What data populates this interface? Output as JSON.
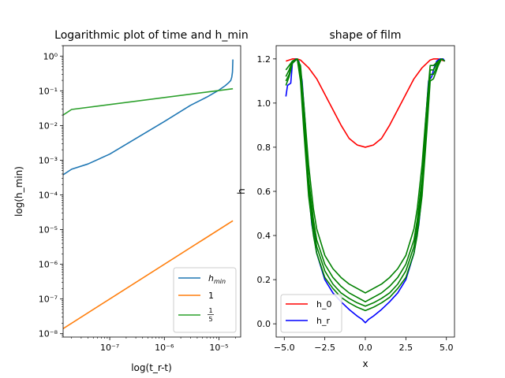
{
  "chart_data": [
    {
      "type": "line",
      "title": "Logarithmic plot of time and h_min",
      "xlabel": "log(t_r-t)",
      "ylabel": "log(h_min)",
      "xscale": "log",
      "yscale": "log",
      "xlim": [
        1.4e-08,
        2.5e-05
      ],
      "ylim": [
        8e-09,
        2.0
      ],
      "xticks": [
        1e-07,
        1e-06,
        1e-05
      ],
      "xtick_labels": [
        "10⁻⁷",
        "10⁻⁶",
        "10⁻⁵"
      ],
      "yticks": [
        1e-08,
        1e-07,
        1e-06,
        1e-05,
        0.0001,
        0.001,
        0.01,
        0.1,
        1
      ],
      "ytick_labels": [
        "10⁻⁸",
        "10⁻⁷",
        "10⁻⁶",
        "10⁻⁵",
        "10⁻⁴",
        "10⁻³",
        "10⁻²",
        "10⁻¹",
        "10⁰"
      ],
      "legend_position": "lower-right",
      "series": [
        {
          "name": "h_min",
          "color": "#1f77b4",
          "x": [
            1.4e-08,
            2e-08,
            4e-08,
            1e-07,
            3e-07,
            1e-06,
            3e-06,
            6e-06,
            1e-05,
            1.3e-05,
            1.5e-05,
            1.65e-05,
            1.72e-05,
            1.77e-05,
            1.8e-05
          ],
          "y": [
            0.00038,
            0.00055,
            0.00078,
            0.0015,
            0.0042,
            0.013,
            0.038,
            0.066,
            0.105,
            0.14,
            0.17,
            0.2,
            0.25,
            0.35,
            0.8
          ]
        },
        {
          "name": "1",
          "color": "#ff7f0e",
          "x": [
            1.4e-08,
            1.8e-05
          ],
          "y": [
            1.4e-08,
            1.8e-05
          ]
        },
        {
          "name": "1/5",
          "color": "#2ca02c",
          "x": [
            1.4e-08,
            2e-08,
            1.8e-05
          ],
          "y": [
            0.02,
            0.029,
            0.115
          ]
        }
      ]
    },
    {
      "type": "line",
      "title": "shape of film",
      "xlabel": "x",
      "ylabel": "h",
      "xlim": [
        -5.5,
        5.5
      ],
      "ylim": [
        -0.06,
        1.26
      ],
      "xticks": [
        -5.0,
        -2.5,
        0.0,
        2.5,
        5.0
      ],
      "xtick_labels": [
        "−5.0",
        "−2.5",
        "0.0",
        "2.5",
        "5.0"
      ],
      "yticks": [
        0.0,
        0.2,
        0.4,
        0.6,
        0.8,
        1.0,
        1.2
      ],
      "ytick_labels": [
        "0.0",
        "0.2",
        "0.4",
        "0.6",
        "0.8",
        "1.0",
        "1.2"
      ],
      "legend_position": "lower-left",
      "series": [
        {
          "name": "h_0",
          "color": "#ff0000",
          "x": [
            -4.9,
            -4.5,
            -4.2,
            -4.0,
            -3.5,
            -3.0,
            -2.5,
            -2.0,
            -1.5,
            -1.0,
            -0.5,
            0.0,
            0.5,
            1.0,
            1.5,
            2.0,
            2.5,
            3.0,
            3.5,
            4.0,
            4.2,
            4.5,
            4.9
          ],
          "y": [
            1.19,
            1.2,
            1.2,
            1.195,
            1.16,
            1.11,
            1.04,
            0.97,
            0.9,
            0.84,
            0.81,
            0.8,
            0.81,
            0.84,
            0.9,
            0.97,
            1.04,
            1.11,
            1.16,
            1.195,
            1.2,
            1.2,
            1.19
          ]
        },
        {
          "name": "h_r",
          "color": "#0000ff",
          "x": [
            -4.9,
            -4.8,
            -4.6,
            -4.5,
            -4.3,
            -4.1,
            -3.9,
            -3.7,
            -3.5,
            -3.3,
            -3.0,
            -2.5,
            -2.0,
            -1.5,
            -1.0,
            -0.5,
            -0.2,
            0.0,
            0.2,
            0.5,
            1.0,
            1.5,
            2.0,
            2.5,
            3.0,
            3.3,
            3.5,
            3.7,
            3.9,
            4.1,
            4.2,
            4.4,
            4.6,
            4.8,
            4.9
          ],
          "y": [
            1.03,
            1.08,
            1.09,
            1.18,
            1.2,
            1.19,
            1.1,
            0.9,
            0.6,
            0.45,
            0.32,
            0.2,
            0.14,
            0.1,
            0.065,
            0.035,
            0.02,
            0.005,
            0.02,
            0.035,
            0.065,
            0.1,
            0.14,
            0.2,
            0.32,
            0.45,
            0.6,
            0.9,
            1.1,
            1.12,
            1.15,
            1.19,
            1.2,
            1.2,
            1.19
          ]
        },
        {
          "color": "#008000",
          "x": [
            -4.9,
            -4.7,
            -4.5,
            -4.2,
            -4.0,
            -3.8,
            -3.5,
            -3.2,
            -3.0,
            -2.5,
            -2.0,
            -1.5,
            -1.0,
            -0.5,
            0.0,
            0.5,
            1.0,
            1.5,
            2.0,
            2.5,
            3.0,
            3.2,
            3.5,
            3.8,
            4.0,
            4.2,
            4.5,
            4.7,
            4.9
          ],
          "y": [
            1.15,
            1.17,
            1.19,
            1.2,
            1.17,
            1.0,
            0.72,
            0.52,
            0.43,
            0.31,
            0.25,
            0.21,
            0.18,
            0.16,
            0.14,
            0.16,
            0.18,
            0.21,
            0.25,
            0.31,
            0.43,
            0.52,
            0.72,
            1.0,
            1.17,
            1.17,
            1.19,
            1.2,
            1.19
          ]
        },
        {
          "color": "#008000",
          "x": [
            -4.9,
            -4.7,
            -4.5,
            -4.2,
            -4.0,
            -3.8,
            -3.5,
            -3.2,
            -3.0,
            -2.5,
            -2.0,
            -1.5,
            -1.0,
            -0.5,
            0.0,
            0.5,
            1.0,
            1.5,
            2.0,
            2.5,
            3.0,
            3.2,
            3.5,
            3.8,
            4.0,
            4.2,
            4.5,
            4.7,
            4.9
          ],
          "y": [
            1.12,
            1.15,
            1.19,
            1.2,
            1.15,
            0.95,
            0.66,
            0.47,
            0.38,
            0.27,
            0.21,
            0.17,
            0.14,
            0.12,
            0.1,
            0.12,
            0.14,
            0.17,
            0.21,
            0.27,
            0.38,
            0.47,
            0.66,
            0.95,
            1.15,
            1.15,
            1.19,
            1.2,
            1.19
          ]
        },
        {
          "color": "#008000",
          "x": [
            -4.9,
            -4.7,
            -4.5,
            -4.2,
            -4.0,
            -3.8,
            -3.5,
            -3.2,
            -3.0,
            -2.5,
            -2.0,
            -1.5,
            -1.0,
            -0.5,
            0.0,
            0.5,
            1.0,
            1.5,
            2.0,
            2.5,
            3.0,
            3.2,
            3.5,
            3.8,
            4.0,
            4.2,
            4.5,
            4.7,
            4.9
          ],
          "y": [
            1.1,
            1.13,
            1.19,
            1.2,
            1.13,
            0.92,
            0.62,
            0.44,
            0.35,
            0.24,
            0.18,
            0.14,
            0.115,
            0.095,
            0.08,
            0.095,
            0.115,
            0.14,
            0.18,
            0.24,
            0.35,
            0.44,
            0.62,
            0.92,
            1.13,
            1.13,
            1.18,
            1.2,
            1.19
          ]
        },
        {
          "color": "#008000",
          "x": [
            -4.9,
            -4.7,
            -4.5,
            -4.2,
            -4.0,
            -3.8,
            -3.5,
            -3.2,
            -3.0,
            -2.5,
            -2.0,
            -1.5,
            -1.0,
            -0.5,
            0.0,
            0.5,
            1.0,
            1.5,
            2.0,
            2.5,
            3.0,
            3.2,
            3.5,
            3.8,
            4.0,
            4.2,
            4.5,
            4.7,
            4.9
          ],
          "y": [
            1.08,
            1.12,
            1.18,
            1.2,
            1.1,
            0.88,
            0.58,
            0.4,
            0.32,
            0.21,
            0.16,
            0.12,
            0.095,
            0.075,
            0.06,
            0.075,
            0.095,
            0.12,
            0.16,
            0.21,
            0.32,
            0.4,
            0.58,
            0.88,
            1.1,
            1.11,
            1.17,
            1.2,
            1.19
          ]
        }
      ]
    }
  ],
  "legend1": [
    {
      "label": "h",
      "sub": "min",
      "color": "#1f77b4"
    },
    {
      "label": "1",
      "color": "#ff7f0e"
    },
    {
      "num": "1",
      "den": "5",
      "color": "#2ca02c"
    }
  ],
  "legend2": [
    {
      "label": "h_0",
      "color": "#ff0000"
    },
    {
      "label": "h_r",
      "color": "#0000ff"
    }
  ]
}
